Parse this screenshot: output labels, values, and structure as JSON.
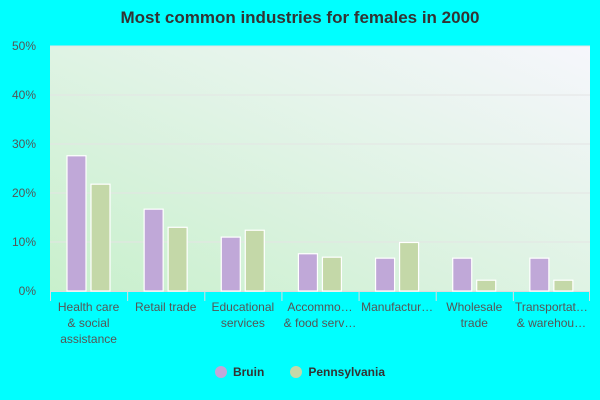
{
  "chart_data": {
    "type": "bar",
    "title": "Most common industries for females in 2000",
    "categories": [
      "Health care & social assistance",
      "Retail trade",
      "Educational services",
      "Accommo… & food serv…",
      "Manufactur…",
      "Wholesale trade",
      "Transportat… & warehou…"
    ],
    "category_lines": [
      [
        "Health care",
        "& social",
        "assistance"
      ],
      [
        "Retail trade"
      ],
      [
        "Educational",
        "services"
      ],
      [
        "Accommo…",
        "& food serv…"
      ],
      [
        "Manufactur…"
      ],
      [
        "Wholesale",
        "trade"
      ],
      [
        "Transportat…",
        "& warehou…"
      ]
    ],
    "series": [
      {
        "name": "Bruin",
        "color": "#c0a8d8",
        "values": [
          27.6,
          16.7,
          11.0,
          7.6,
          6.7,
          6.7,
          6.7
        ]
      },
      {
        "name": "Pennsylvania",
        "color": "#c4d8a8",
        "values": [
          21.8,
          13.0,
          12.4,
          6.9,
          9.9,
          2.2,
          2.2
        ]
      }
    ],
    "yticks": [
      "0%",
      "10%",
      "20%",
      "30%",
      "40%",
      "50%"
    ],
    "ylim": [
      0,
      50
    ],
    "grid": true,
    "legend": "bottom"
  }
}
